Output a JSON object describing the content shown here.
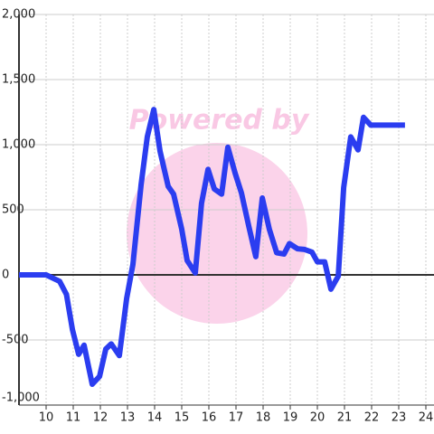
{
  "chart_data": {
    "type": "line",
    "watermark": "Powered by",
    "x": [
      9.0,
      10.0,
      10.5,
      10.75,
      10.97,
      11.2,
      11.4,
      11.7,
      11.97,
      12.2,
      12.4,
      12.7,
      12.97,
      13.2,
      13.5,
      13.73,
      13.97,
      14.2,
      14.5,
      14.7,
      15.0,
      15.2,
      15.5,
      15.73,
      15.97,
      16.2,
      16.47,
      16.7,
      16.97,
      17.2,
      17.47,
      17.73,
      17.97,
      18.23,
      18.5,
      18.77,
      18.97,
      19.27,
      19.53,
      19.8,
      20.0,
      20.27,
      20.5,
      20.77,
      20.97,
      21.23,
      21.5,
      21.7,
      21.97,
      23.23
    ],
    "series": [
      {
        "color": "#2b3df0",
        "values": [
          0,
          0,
          -50,
          -150,
          -420,
          -610,
          -540,
          -840,
          -780,
          -570,
          -530,
          -620,
          -180,
          80,
          690,
          1060,
          1270,
          950,
          680,
          620,
          350,
          110,
          15,
          550,
          810,
          660,
          620,
          980,
          780,
          630,
          375,
          140,
          590,
          350,
          170,
          160,
          240,
          200,
          195,
          175,
          100,
          100,
          -110,
          -10,
          670,
          1060,
          960,
          1210,
          1150,
          1150
        ]
      }
    ],
    "xlim": [
      9,
      24.3
    ],
    "xticks": [
      10,
      11,
      12,
      13,
      14,
      15,
      16,
      17,
      18,
      19,
      20,
      21,
      22,
      23,
      24
    ],
    "ylim": [
      -1000,
      2000
    ],
    "yticks": [
      {
        "value": -1000,
        "label": "-1,000"
      },
      -500,
      0,
      500,
      {
        "value": 1000,
        "label": "1,000"
      },
      {
        "value": 1500,
        "label": "1,500"
      },
      {
        "value": 2000,
        "label": "2,000"
      }
    ],
    "grid": true,
    "zero_line": true
  }
}
